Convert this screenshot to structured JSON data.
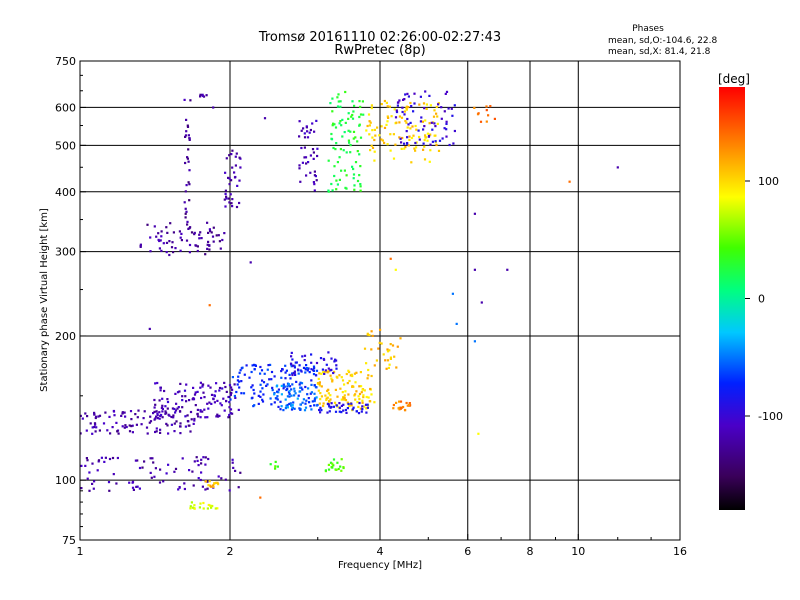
{
  "chart_data": {
    "type": "scatter",
    "title": "Tromsø 20161110 02:26:00-02:27:43",
    "subtitle": "RwPretec (8p)",
    "xlabel": "Frequency [MHz]",
    "ylabel": "Stationary phase Virtual Height [km]",
    "x_scale": "log",
    "y_scale": "log",
    "xlim": [
      1,
      16
    ],
    "ylim": [
      75,
      750
    ],
    "x_ticks": [
      1,
      2,
      4,
      6,
      8,
      10,
      16
    ],
    "x_tick_labels": [
      "1",
      "2",
      "4",
      "6",
      "8",
      "10",
      "16"
    ],
    "x_gridlines": [
      2,
      4,
      6,
      8,
      10
    ],
    "y_ticks": [
      75,
      100,
      200,
      300,
      400,
      500,
      600,
      750
    ],
    "y_tick_labels": [
      "75",
      "100",
      "200",
      "300",
      "400",
      "500",
      "600",
      "750"
    ],
    "y_gridlines": [
      100,
      200,
      300,
      400,
      500,
      600
    ],
    "grid": true,
    "colorbar": {
      "label": "[deg]",
      "range": [
        -180,
        180
      ],
      "ticks": [
        100,
        0,
        -100
      ],
      "tick_labels": [
        "100",
        "0",
        "-100"
      ]
    },
    "stats": {
      "heading": "Phases",
      "line1": "mean, sd,O:-104.6, 22.8",
      "line2": "mean, sd,X:  81.4, 21.8"
    },
    "clusters": [
      {
        "name": "F2 lower trace",
        "x0": 1.32,
        "x1": 1.95,
        "y0": 295,
        "y1": 345,
        "phase": -125,
        "n": 70
      },
      {
        "name": "F2 cusp",
        "x0": 1.62,
        "x1": 1.66,
        "y0": 330,
        "y1": 580,
        "phase": -128,
        "n": 30
      },
      {
        "name": "F2 top",
        "x0": 1.62,
        "x1": 1.8,
        "y0": 620,
        "y1": 645,
        "phase": -125,
        "n": 8
      },
      {
        "name": "F2 rise",
        "x0": 1.95,
        "x1": 2.1,
        "y0": 370,
        "y1": 500,
        "phase": -120,
        "n": 35
      },
      {
        "name": "F2 mid",
        "x0": 2.75,
        "x1": 3.0,
        "y0": 400,
        "y1": 570,
        "phase": -115,
        "n": 40
      },
      {
        "name": "F2 X green",
        "x0": 3.15,
        "x1": 3.7,
        "y0": 400,
        "y1": 650,
        "phase": 20,
        "n": 90
      },
      {
        "name": "F2 X yellow",
        "x0": 3.75,
        "x1": 5.3,
        "y0": 460,
        "y1": 620,
        "phase": 105,
        "n": 110
      },
      {
        "name": "F2 O blue",
        "x0": 4.3,
        "x1": 5.7,
        "y0": 500,
        "y1": 650,
        "phase": -100,
        "n": 70
      },
      {
        "name": "F2 high orange",
        "x0": 6.0,
        "x1": 6.8,
        "y0": 560,
        "y1": 610,
        "phase": 140,
        "n": 10
      },
      {
        "name": "E low violet",
        "x0": 1.0,
        "x1": 1.7,
        "y0": 125,
        "y1": 140,
        "phase": -120,
        "n": 110
      },
      {
        "name": "E upper violet",
        "x0": 1.4,
        "x1": 2.1,
        "y0": 135,
        "y1": 160,
        "phase": -115,
        "n": 120
      },
      {
        "name": "E bottom violet",
        "x0": 1.0,
        "x1": 2.1,
        "y0": 95,
        "y1": 112,
        "phase": -120,
        "n": 90
      },
      {
        "name": "E blue",
        "x0": 2.0,
        "x1": 3.0,
        "y0": 140,
        "y1": 175,
        "phase": -70,
        "n": 140
      },
      {
        "name": "E cyan",
        "x0": 2.4,
        "x1": 3.0,
        "y0": 140,
        "y1": 160,
        "phase": -50,
        "n": 60
      },
      {
        "name": "E X yellow",
        "x0": 3.0,
        "x1": 3.9,
        "y0": 140,
        "y1": 170,
        "phase": 105,
        "n": 120
      },
      {
        "name": "E blue upper",
        "x0": 2.6,
        "x1": 3.3,
        "y0": 165,
        "y1": 185,
        "phase": -95,
        "n": 40
      },
      {
        "name": "E orange",
        "x0": 4.2,
        "x1": 4.6,
        "y0": 140,
        "y1": 146,
        "phase": 135,
        "n": 20
      },
      {
        "name": "E yellow high",
        "x0": 3.7,
        "x1": 4.4,
        "y0": 170,
        "y1": 205,
        "phase": 110,
        "n": 30
      },
      {
        "name": "E blue floor",
        "x0": 3.0,
        "x1": 3.8,
        "y0": 138,
        "y1": 145,
        "phase": -90,
        "n": 40
      },
      {
        "name": "E green low",
        "x0": 3.1,
        "x1": 3.4,
        "y0": 104,
        "y1": 111,
        "phase": 40,
        "n": 20
      },
      {
        "name": "E green low 2",
        "x0": 2.4,
        "x1": 2.5,
        "y0": 105,
        "y1": 110,
        "phase": 40,
        "n": 5
      },
      {
        "name": "Es yellow",
        "x0": 1.78,
        "x1": 1.92,
        "y0": 96,
        "y1": 100,
        "phase": 115,
        "n": 14
      },
      {
        "name": "Es orange-green",
        "x0": 1.65,
        "x1": 1.9,
        "y0": 87,
        "y1": 90,
        "phase": 80,
        "n": 18
      }
    ],
    "isolated_points": [
      {
        "x": 1.38,
        "y": 207,
        "phase": -120
      },
      {
        "x": 1.85,
        "y": 600,
        "phase": -120
      },
      {
        "x": 2.2,
        "y": 285,
        "phase": -120
      },
      {
        "x": 2.35,
        "y": 570,
        "phase": -120
      },
      {
        "x": 1.82,
        "y": 232,
        "phase": 140
      },
      {
        "x": 2.3,
        "y": 92,
        "phase": 140
      },
      {
        "x": 4.2,
        "y": 290,
        "phase": 140
      },
      {
        "x": 4.3,
        "y": 275,
        "phase": 90
      },
      {
        "x": 5.6,
        "y": 245,
        "phase": -50
      },
      {
        "x": 5.7,
        "y": 212,
        "phase": -50
      },
      {
        "x": 6.2,
        "y": 360,
        "phase": -120
      },
      {
        "x": 6.2,
        "y": 275,
        "phase": -120
      },
      {
        "x": 6.4,
        "y": 235,
        "phase": -120
      },
      {
        "x": 7.2,
        "y": 275,
        "phase": -120
      },
      {
        "x": 6.2,
        "y": 195,
        "phase": -50
      },
      {
        "x": 6.3,
        "y": 125,
        "phase": 90
      },
      {
        "x": 9.6,
        "y": 420,
        "phase": 140
      },
      {
        "x": 12.0,
        "y": 450,
        "phase": -120
      },
      {
        "x": 4.0,
        "y": 206,
        "phase": 120
      }
    ]
  }
}
